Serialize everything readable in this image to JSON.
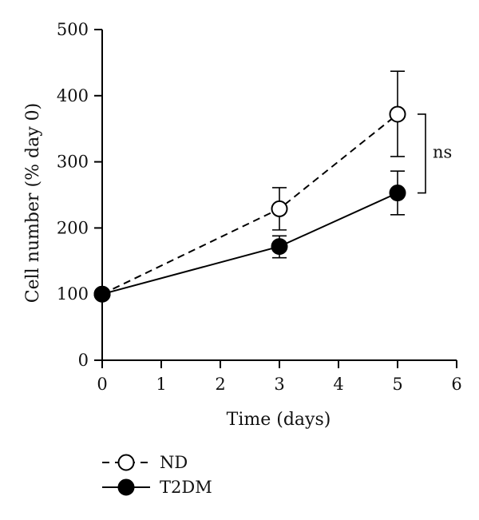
{
  "chart_data": {
    "type": "line",
    "title": "",
    "xlabel": "Time (days)",
    "ylabel": "Cell number (% day 0)",
    "xlim": [
      0,
      6
    ],
    "ylim": [
      0,
      500
    ],
    "x_ticks": [
      0,
      1,
      2,
      3,
      4,
      5,
      6
    ],
    "y_ticks": [
      0,
      100,
      200,
      300,
      400,
      500
    ],
    "grid": false,
    "legend_position": "bottom-left",
    "series": [
      {
        "name": "ND",
        "marker": "open-circle",
        "line_style": "dashed",
        "color": "#000000",
        "x": [
          0,
          3,
          5
        ],
        "y": [
          100,
          229,
          372
        ],
        "error_upper": [
          0,
          261,
          437
        ],
        "error_lower": [
          0,
          197,
          308
        ]
      },
      {
        "name": "T2DM",
        "marker": "filled-circle",
        "line_style": "solid",
        "color": "#000000",
        "x": [
          0,
          3,
          5
        ],
        "y": [
          100,
          172,
          253
        ],
        "error_upper": [
          0,
          188,
          286
        ],
        "error_lower": [
          0,
          155,
          220
        ]
      }
    ],
    "annotations": [
      {
        "text": "ns",
        "type": "bracket",
        "x": 5,
        "y_from": 372,
        "y_to": 253
      }
    ]
  }
}
